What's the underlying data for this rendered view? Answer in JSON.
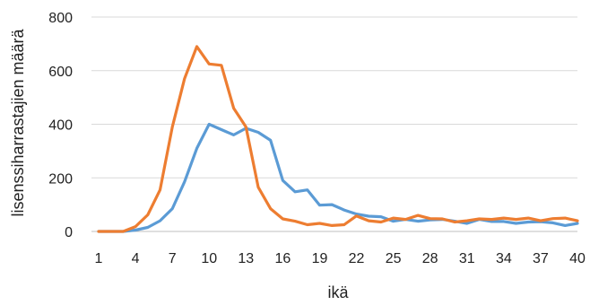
{
  "chart_data": {
    "type": "line",
    "title": "",
    "xlabel": "ikä",
    "ylabel": "lisenssiharrastajien määrä",
    "ylim": [
      0,
      800
    ],
    "yticks": [
      0,
      200,
      400,
      600,
      800
    ],
    "xticks": [
      1,
      4,
      7,
      10,
      13,
      16,
      19,
      22,
      25,
      28,
      31,
      34,
      37,
      40
    ],
    "grid": "horizontal",
    "legend": "none",
    "x": [
      1,
      2,
      3,
      4,
      5,
      6,
      7,
      8,
      9,
      10,
      11,
      12,
      13,
      14,
      15,
      16,
      17,
      18,
      19,
      20,
      21,
      22,
      23,
      24,
      25,
      26,
      27,
      28,
      29,
      30,
      31,
      32,
      33,
      34,
      35,
      36,
      37,
      38,
      39,
      40
    ],
    "series": [
      {
        "color": "#5B9BD5",
        "values": [
          0,
          0,
          0,
          5,
          15,
          40,
          85,
          185,
          310,
          400,
          380,
          360,
          385,
          370,
          340,
          190,
          148,
          155,
          98,
          100,
          80,
          65,
          57,
          55,
          38,
          45,
          38,
          43,
          45,
          38,
          30,
          45,
          37,
          37,
          30,
          35,
          36,
          32,
          22,
          30
        ]
      },
      {
        "color": "#ED7D31",
        "values": [
          0,
          0,
          0,
          18,
          62,
          155,
          390,
          570,
          690,
          625,
          620,
          460,
          390,
          165,
          85,
          47,
          38,
          25,
          30,
          22,
          25,
          58,
          40,
          35,
          50,
          45,
          60,
          48,
          47,
          35,
          40,
          47,
          45,
          50,
          45,
          50,
          40,
          48,
          50,
          40
        ]
      }
    ]
  }
}
